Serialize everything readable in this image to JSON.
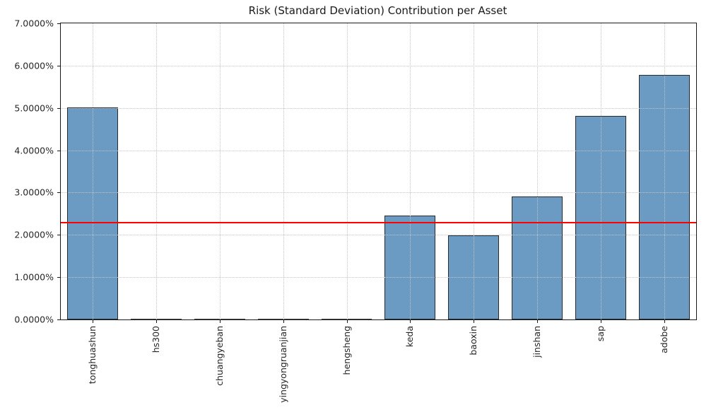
{
  "chart_data": {
    "type": "bar",
    "title": "Risk (Standard Deviation) Contribution per Asset",
    "categories": [
      "tonghuashun",
      "hs300",
      "chuangyeban",
      "yingyongruanjian",
      "hengsheng",
      "keda",
      "baoxin",
      "jinshan",
      "sap",
      "adobe"
    ],
    "values": [
      5.02,
      0.0,
      0.0,
      0.0,
      0.0,
      2.45,
      1.98,
      2.9,
      4.81,
      5.78
    ],
    "unit": "percent",
    "xlabel": "",
    "ylabel": "",
    "ylim": [
      0,
      7
    ],
    "ytick_values": [
      0,
      1,
      2,
      3,
      4,
      5,
      6,
      7
    ],
    "ytick_labels": [
      "0.0000%",
      "1.0000%",
      "2.0000%",
      "3.0000%",
      "4.0000%",
      "5.0000%",
      "6.0000%",
      "7.0000%"
    ],
    "grid": true,
    "grid_style": "dotted",
    "grid_color": "#c4c4c4",
    "bar_color": "#4682b4",
    "bar_opacity": 0.8,
    "bar_edge_color": "#1f1f1f",
    "reference_line": {
      "value": 2.3,
      "color": "#ff0000"
    },
    "legend": null
  }
}
